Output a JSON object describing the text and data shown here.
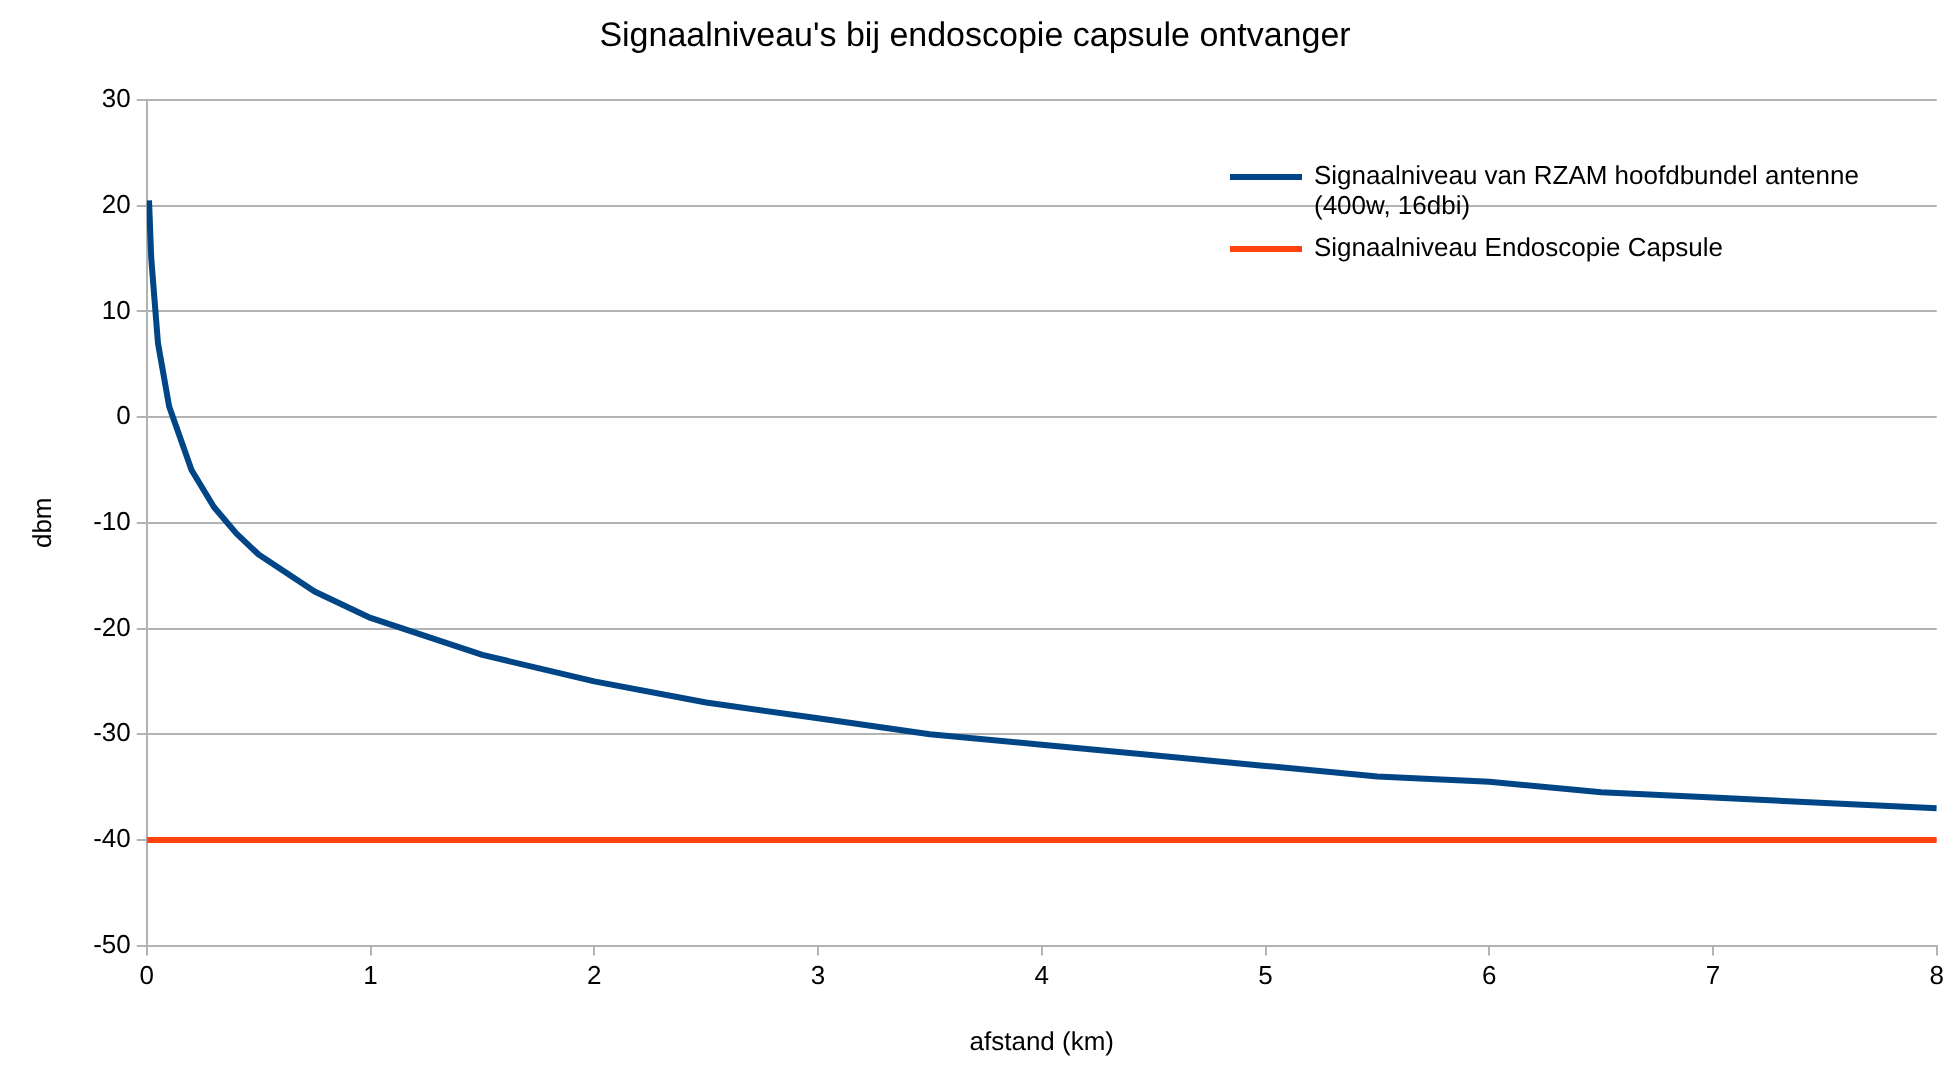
{
  "chart_data": {
    "type": "line",
    "title": "Signaalniveau's bij endoscopie capsule ontvanger",
    "xlabel": "afstand (km)",
    "ylabel": "dbm",
    "xlim": [
      0,
      8
    ],
    "xticks": [
      0,
      1,
      2,
      3,
      4,
      5,
      6,
      7,
      8
    ],
    "ylim": [
      -50,
      30
    ],
    "yticks": [
      -50,
      -40,
      -30,
      -20,
      -10,
      0,
      10,
      20,
      30
    ],
    "grid": "y",
    "legend": "top right",
    "marker": "none",
    "line_style": "solid",
    "series": [
      {
        "name": "Signaalniveau van RZAM hoofdbundel antenne (400w, 16dbi)",
        "color": "#004586",
        "x": [
          0.01,
          0.02,
          0.05,
          0.1,
          0.2,
          0.3,
          0.4,
          0.5,
          0.75,
          1,
          1.5,
          2,
          2.5,
          3,
          3.5,
          4,
          4.5,
          5,
          5.5,
          6,
          6.5,
          7,
          7.5,
          8
        ],
        "values": [
          20.5,
          15,
          7,
          1,
          -5,
          -8.5,
          -11,
          -13,
          -16.5,
          -19,
          -22.5,
          -25,
          -27,
          -28.5,
          -30,
          -31,
          -32,
          -33,
          -34,
          -34.5,
          -35.5,
          -36,
          -36.5,
          -37
        ]
      },
      {
        "name": "Signaalniveau Endoscopie Capsule",
        "color": "#ff420e",
        "x": [
          0,
          8
        ],
        "values": [
          -40,
          -40
        ]
      }
    ]
  }
}
